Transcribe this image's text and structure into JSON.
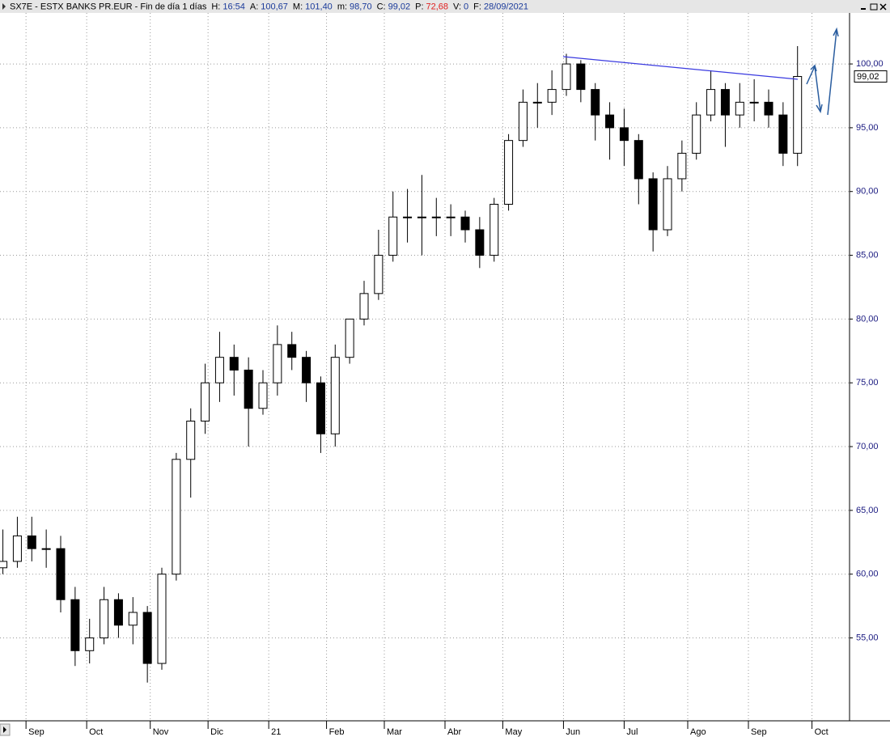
{
  "header": {
    "symbol_text": "SX7E - ESTX BANKS PR.EUR - Fin de día 1 días",
    "fields": [
      {
        "label": "H:",
        "value": "16:54",
        "color": "#1a3a9a"
      },
      {
        "label": "A:",
        "value": "100,67",
        "color": "#1a3a9a"
      },
      {
        "label": "M:",
        "value": "101,40",
        "color": "#1a3a9a"
      },
      {
        "label": "m:",
        "value": "98,70",
        "color": "#1a3a9a"
      },
      {
        "label": "C:",
        "value": "99,02",
        "color": "#1a3a9a"
      },
      {
        "label": "P:",
        "value": "72,68",
        "color": "#e02020"
      },
      {
        "label": "V:",
        "value": "0",
        "color": "#1a3a9a"
      },
      {
        "label": "F:",
        "value": "28/09/2021",
        "color": "#1a3a9a"
      }
    ]
  },
  "chart_data": {
    "type": "candlestick",
    "grid": true,
    "up_color": "#ffffff",
    "down_color": "#000000",
    "x": [
      1,
      6,
      11,
      16,
      21,
      26,
      31,
      36,
      41,
      46,
      51,
      56,
      61,
      66,
      71,
      76,
      81,
      86,
      91,
      96,
      101,
      106,
      111,
      116,
      121,
      126,
      131,
      136,
      141,
      146,
      151,
      156,
      161,
      166,
      171,
      176,
      181,
      186,
      191,
      196,
      201,
      206,
      211,
      216,
      221,
      226,
      231,
      236,
      241,
      246,
      251,
      256,
      261,
      266,
      271,
      276
    ],
    "open": [
      60.5,
      61,
      63,
      62,
      62,
      58,
      54,
      55,
      58,
      56,
      57,
      53,
      60,
      69,
      72,
      75,
      77,
      76,
      73,
      75,
      78,
      77,
      75,
      71,
      77,
      80,
      82,
      85,
      88,
      88,
      88,
      88,
      88,
      87,
      85,
      89,
      94,
      97,
      97,
      98,
      100,
      98,
      96,
      95,
      94,
      91,
      87,
      91,
      93,
      96,
      98,
      96,
      97,
      97,
      96,
      93
    ],
    "high": [
      63.5,
      64.5,
      64.5,
      63.5,
      63,
      59,
      56.5,
      59,
      58.5,
      58.2,
      57.5,
      60.5,
      69.5,
      73,
      76.5,
      79,
      78,
      77,
      76,
      79.5,
      79,
      77.5,
      75.5,
      78,
      80,
      83,
      87,
      90,
      90.2,
      91.3,
      89.5,
      89,
      88.5,
      88,
      89.5,
      94.5,
      98,
      98.5,
      99.5,
      100.8,
      100.3,
      98.5,
      97,
      96.5,
      94.5,
      91.5,
      92,
      94,
      97,
      99.5,
      98.5,
      98.5,
      98.8,
      98,
      97,
      101.4
    ],
    "low": [
      60,
      60.5,
      61,
      60.5,
      57,
      52.8,
      53,
      54.5,
      55,
      54.5,
      51.5,
      52.5,
      59.5,
      66,
      71,
      73.5,
      74,
      70,
      72.5,
      74,
      76,
      73.5,
      69.5,
      70,
      76.5,
      79.5,
      81.5,
      84.5,
      86,
      85,
      86.5,
      86.5,
      86,
      84,
      84.5,
      88.5,
      93.5,
      95,
      96,
      97.5,
      97,
      94,
      92.5,
      92,
      89,
      85.3,
      86.5,
      90,
      92.5,
      95.5,
      93.5,
      95,
      95.5,
      95,
      92,
      92
    ],
    "close": [
      61,
      63,
      62,
      62,
      58,
      54,
      55,
      58,
      56,
      57,
      53,
      60,
      69,
      72,
      75,
      77,
      76,
      73,
      75,
      78,
      77,
      75,
      71,
      77,
      80,
      82,
      85,
      88,
      88,
      88,
      88,
      88,
      87,
      85,
      89,
      94,
      97,
      97,
      98,
      100,
      98,
      96,
      95,
      94,
      91,
      87,
      91,
      93,
      96,
      98,
      96,
      97,
      97,
      96,
      93,
      99.02
    ],
    "last_label": "99,02",
    "xlim": [
      0,
      294
    ],
    "xticks": [
      {
        "value": 9,
        "label": "Sep"
      },
      {
        "value": 30,
        "label": "Oct"
      },
      {
        "value": 52,
        "label": "Nov"
      },
      {
        "value": 72,
        "label": "Dic"
      },
      {
        "value": 93,
        "label": "21"
      },
      {
        "value": 113,
        "label": "Feb"
      },
      {
        "value": 133,
        "label": "Mar"
      },
      {
        "value": 154,
        "label": "Abr"
      },
      {
        "value": 174,
        "label": "May"
      },
      {
        "value": 195,
        "label": "Jun"
      },
      {
        "value": 216,
        "label": "Jul"
      },
      {
        "value": 238,
        "label": "Ago"
      },
      {
        "value": 259,
        "label": "Sep"
      },
      {
        "value": 281,
        "label": "Oct"
      }
    ],
    "ylim": [
      48.5,
      104
    ],
    "yticks": [
      {
        "value": 55,
        "label": "55,00"
      },
      {
        "value": 60,
        "label": "60,00"
      },
      {
        "value": 65,
        "label": "65,00"
      },
      {
        "value": 70,
        "label": "70,00"
      },
      {
        "value": 75,
        "label": "75,00"
      },
      {
        "value": 80,
        "label": "80,00"
      },
      {
        "value": 85,
        "label": "85,00"
      },
      {
        "value": 90,
        "label": "90,00"
      },
      {
        "value": 95,
        "label": "95,00"
      },
      {
        "value": 100,
        "label": "100,00"
      }
    ]
  }
}
